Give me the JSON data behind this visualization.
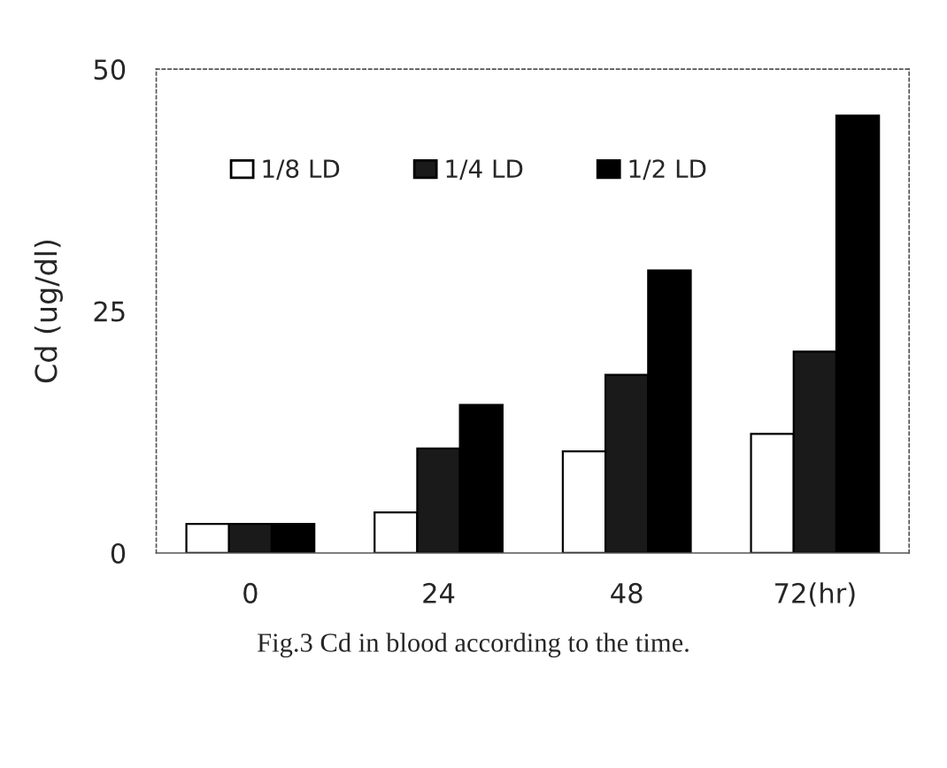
{
  "chart_data": {
    "type": "bar",
    "ylabel": "Cd (ug/dl)",
    "categories": [
      "0",
      "24",
      "48",
      "72(hr)"
    ],
    "series": [
      {
        "name": "1/8 LD",
        "color": "#ffffff",
        "values": [
          3,
          4.2,
          10.5,
          12.3
        ]
      },
      {
        "name": "1/4 LD",
        "color": "#1a1a1a",
        "values": [
          3,
          10.8,
          18.4,
          20.8
        ]
      },
      {
        "name": "1/2 LD",
        "color": "#000000",
        "values": [
          3,
          15.3,
          29.2,
          45.2
        ]
      }
    ],
    "ylim": [
      0,
      50
    ],
    "yticks": [
      0,
      25,
      50
    ],
    "grid": false,
    "legend": "top left",
    "annotations": [
      "Fig.3 Cd in blood according to the time."
    ]
  }
}
